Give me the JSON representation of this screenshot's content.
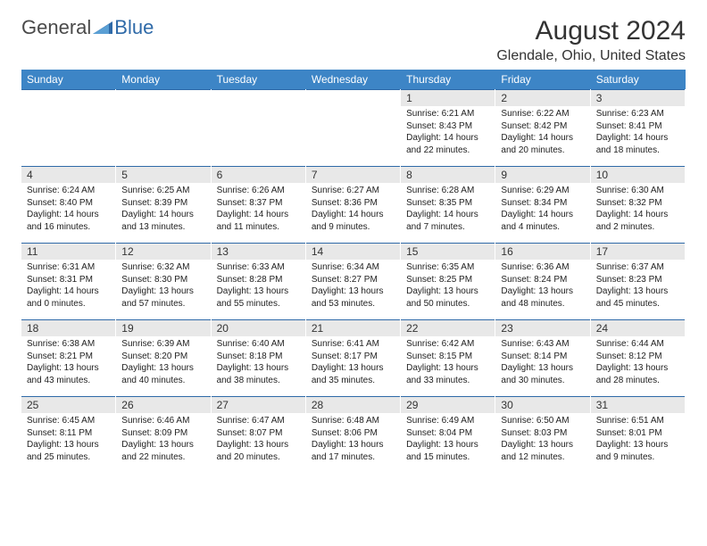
{
  "logo": {
    "text1": "General",
    "text2": "Blue"
  },
  "header": {
    "title": "August 2024",
    "location": "Glendale, Ohio, United States"
  },
  "colors": {
    "header_bg": "#3d85c6",
    "header_text": "#ffffff",
    "daynum_bg": "#e8e8e8",
    "rule": "#2f6aa8",
    "body_text": "#222222",
    "logo_gray": "#4a4a4a",
    "logo_blue": "#2f6aa8"
  },
  "weekdays": [
    "Sunday",
    "Monday",
    "Tuesday",
    "Wednesday",
    "Thursday",
    "Friday",
    "Saturday"
  ],
  "weeks": [
    [
      null,
      null,
      null,
      null,
      {
        "n": "1",
        "sr": "Sunrise: 6:21 AM",
        "ss": "Sunset: 8:43 PM",
        "dl1": "Daylight: 14 hours",
        "dl2": "and 22 minutes."
      },
      {
        "n": "2",
        "sr": "Sunrise: 6:22 AM",
        "ss": "Sunset: 8:42 PM",
        "dl1": "Daylight: 14 hours",
        "dl2": "and 20 minutes."
      },
      {
        "n": "3",
        "sr": "Sunrise: 6:23 AM",
        "ss": "Sunset: 8:41 PM",
        "dl1": "Daylight: 14 hours",
        "dl2": "and 18 minutes."
      }
    ],
    [
      {
        "n": "4",
        "sr": "Sunrise: 6:24 AM",
        "ss": "Sunset: 8:40 PM",
        "dl1": "Daylight: 14 hours",
        "dl2": "and 16 minutes."
      },
      {
        "n": "5",
        "sr": "Sunrise: 6:25 AM",
        "ss": "Sunset: 8:39 PM",
        "dl1": "Daylight: 14 hours",
        "dl2": "and 13 minutes."
      },
      {
        "n": "6",
        "sr": "Sunrise: 6:26 AM",
        "ss": "Sunset: 8:37 PM",
        "dl1": "Daylight: 14 hours",
        "dl2": "and 11 minutes."
      },
      {
        "n": "7",
        "sr": "Sunrise: 6:27 AM",
        "ss": "Sunset: 8:36 PM",
        "dl1": "Daylight: 14 hours",
        "dl2": "and 9 minutes."
      },
      {
        "n": "8",
        "sr": "Sunrise: 6:28 AM",
        "ss": "Sunset: 8:35 PM",
        "dl1": "Daylight: 14 hours",
        "dl2": "and 7 minutes."
      },
      {
        "n": "9",
        "sr": "Sunrise: 6:29 AM",
        "ss": "Sunset: 8:34 PM",
        "dl1": "Daylight: 14 hours",
        "dl2": "and 4 minutes."
      },
      {
        "n": "10",
        "sr": "Sunrise: 6:30 AM",
        "ss": "Sunset: 8:32 PM",
        "dl1": "Daylight: 14 hours",
        "dl2": "and 2 minutes."
      }
    ],
    [
      {
        "n": "11",
        "sr": "Sunrise: 6:31 AM",
        "ss": "Sunset: 8:31 PM",
        "dl1": "Daylight: 14 hours",
        "dl2": "and 0 minutes."
      },
      {
        "n": "12",
        "sr": "Sunrise: 6:32 AM",
        "ss": "Sunset: 8:30 PM",
        "dl1": "Daylight: 13 hours",
        "dl2": "and 57 minutes."
      },
      {
        "n": "13",
        "sr": "Sunrise: 6:33 AM",
        "ss": "Sunset: 8:28 PM",
        "dl1": "Daylight: 13 hours",
        "dl2": "and 55 minutes."
      },
      {
        "n": "14",
        "sr": "Sunrise: 6:34 AM",
        "ss": "Sunset: 8:27 PM",
        "dl1": "Daylight: 13 hours",
        "dl2": "and 53 minutes."
      },
      {
        "n": "15",
        "sr": "Sunrise: 6:35 AM",
        "ss": "Sunset: 8:25 PM",
        "dl1": "Daylight: 13 hours",
        "dl2": "and 50 minutes."
      },
      {
        "n": "16",
        "sr": "Sunrise: 6:36 AM",
        "ss": "Sunset: 8:24 PM",
        "dl1": "Daylight: 13 hours",
        "dl2": "and 48 minutes."
      },
      {
        "n": "17",
        "sr": "Sunrise: 6:37 AM",
        "ss": "Sunset: 8:23 PM",
        "dl1": "Daylight: 13 hours",
        "dl2": "and 45 minutes."
      }
    ],
    [
      {
        "n": "18",
        "sr": "Sunrise: 6:38 AM",
        "ss": "Sunset: 8:21 PM",
        "dl1": "Daylight: 13 hours",
        "dl2": "and 43 minutes."
      },
      {
        "n": "19",
        "sr": "Sunrise: 6:39 AM",
        "ss": "Sunset: 8:20 PM",
        "dl1": "Daylight: 13 hours",
        "dl2": "and 40 minutes."
      },
      {
        "n": "20",
        "sr": "Sunrise: 6:40 AM",
        "ss": "Sunset: 8:18 PM",
        "dl1": "Daylight: 13 hours",
        "dl2": "and 38 minutes."
      },
      {
        "n": "21",
        "sr": "Sunrise: 6:41 AM",
        "ss": "Sunset: 8:17 PM",
        "dl1": "Daylight: 13 hours",
        "dl2": "and 35 minutes."
      },
      {
        "n": "22",
        "sr": "Sunrise: 6:42 AM",
        "ss": "Sunset: 8:15 PM",
        "dl1": "Daylight: 13 hours",
        "dl2": "and 33 minutes."
      },
      {
        "n": "23",
        "sr": "Sunrise: 6:43 AM",
        "ss": "Sunset: 8:14 PM",
        "dl1": "Daylight: 13 hours",
        "dl2": "and 30 minutes."
      },
      {
        "n": "24",
        "sr": "Sunrise: 6:44 AM",
        "ss": "Sunset: 8:12 PM",
        "dl1": "Daylight: 13 hours",
        "dl2": "and 28 minutes."
      }
    ],
    [
      {
        "n": "25",
        "sr": "Sunrise: 6:45 AM",
        "ss": "Sunset: 8:11 PM",
        "dl1": "Daylight: 13 hours",
        "dl2": "and 25 minutes."
      },
      {
        "n": "26",
        "sr": "Sunrise: 6:46 AM",
        "ss": "Sunset: 8:09 PM",
        "dl1": "Daylight: 13 hours",
        "dl2": "and 22 minutes."
      },
      {
        "n": "27",
        "sr": "Sunrise: 6:47 AM",
        "ss": "Sunset: 8:07 PM",
        "dl1": "Daylight: 13 hours",
        "dl2": "and 20 minutes."
      },
      {
        "n": "28",
        "sr": "Sunrise: 6:48 AM",
        "ss": "Sunset: 8:06 PM",
        "dl1": "Daylight: 13 hours",
        "dl2": "and 17 minutes."
      },
      {
        "n": "29",
        "sr": "Sunrise: 6:49 AM",
        "ss": "Sunset: 8:04 PM",
        "dl1": "Daylight: 13 hours",
        "dl2": "and 15 minutes."
      },
      {
        "n": "30",
        "sr": "Sunrise: 6:50 AM",
        "ss": "Sunset: 8:03 PM",
        "dl1": "Daylight: 13 hours",
        "dl2": "and 12 minutes."
      },
      {
        "n": "31",
        "sr": "Sunrise: 6:51 AM",
        "ss": "Sunset: 8:01 PM",
        "dl1": "Daylight: 13 hours",
        "dl2": "and 9 minutes."
      }
    ]
  ]
}
